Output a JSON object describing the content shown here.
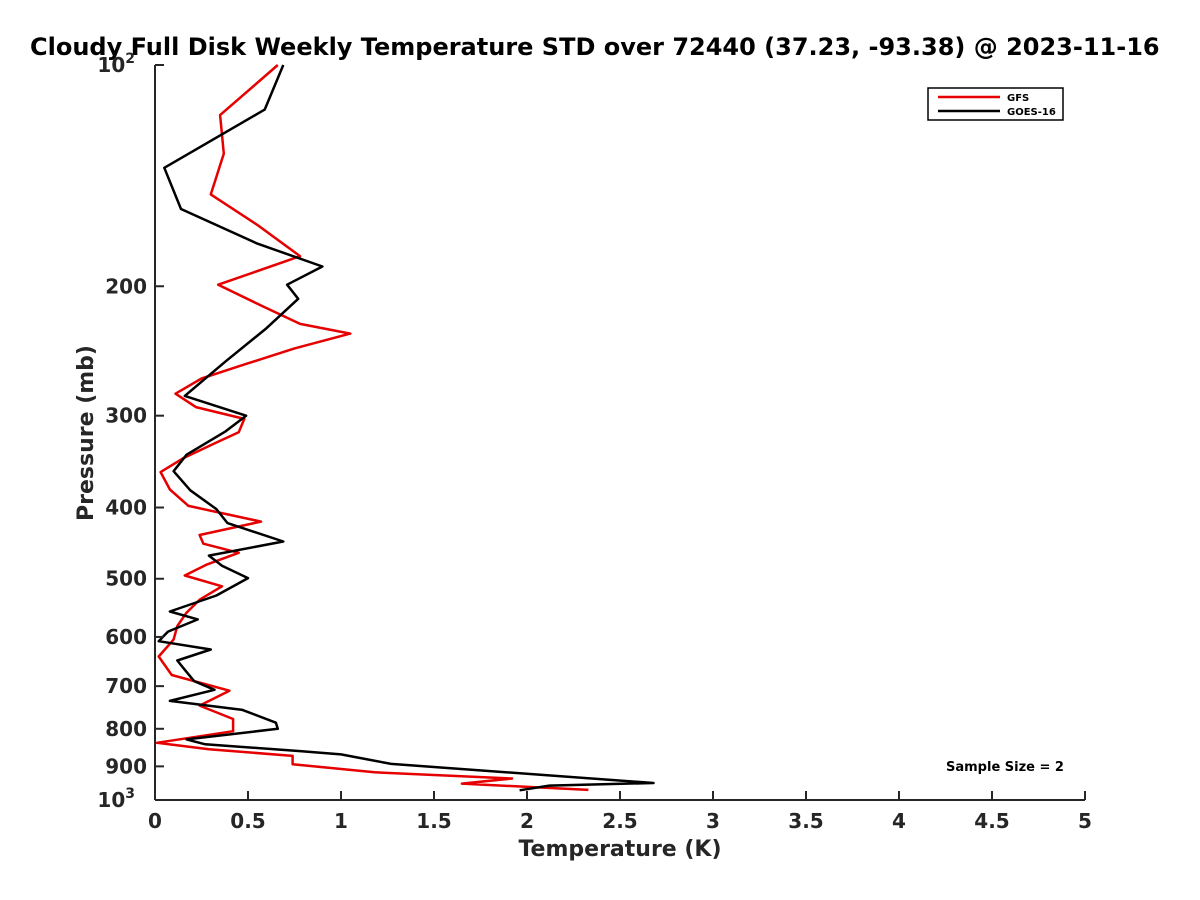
{
  "chart_data": {
    "type": "line",
    "title": "Cloudy Full Disk Weekly Temperature STD over 72440 (37.23, -93.38) @ 2023-11-16",
    "xlabel": "Temperature (K)",
    "ylabel": "Pressure (mb)",
    "xlim": [
      0,
      5
    ],
    "ylim": [
      100,
      1000
    ],
    "yscale": "log",
    "y_reversed": true,
    "x_ticks": [
      {
        "value": 0,
        "label": "0"
      },
      {
        "value": 0.5,
        "label": "0.5"
      },
      {
        "value": 1,
        "label": "1"
      },
      {
        "value": 1.5,
        "label": "1.5"
      },
      {
        "value": 2,
        "label": "2"
      },
      {
        "value": 2.5,
        "label": "2.5"
      },
      {
        "value": 3,
        "label": "3"
      },
      {
        "value": 3.5,
        "label": "3.5"
      },
      {
        "value": 4,
        "label": "4"
      },
      {
        "value": 4.5,
        "label": "4.5"
      },
      {
        "value": 5,
        "label": "5"
      }
    ],
    "y_ticks": [
      {
        "value": 100,
        "label": "10",
        "sup": "2"
      },
      {
        "value": 200,
        "label": "200"
      },
      {
        "value": 300,
        "label": "300"
      },
      {
        "value": 400,
        "label": "400"
      },
      {
        "value": 500,
        "label": "500"
      },
      {
        "value": 600,
        "label": "600"
      },
      {
        "value": 700,
        "label": "700"
      },
      {
        "value": 800,
        "label": "800"
      },
      {
        "value": 900,
        "label": "900"
      },
      {
        "value": 1000,
        "label": "10",
        "sup": "3"
      }
    ],
    "legend": {
      "position": "top-right"
    },
    "annotations": [
      {
        "text": "Sample Size = 2",
        "position": "bottom-right"
      }
    ],
    "grid": false,
    "series": [
      {
        "name": "GFS",
        "color": "#e60000",
        "x": [
          0.66,
          0.35,
          0.37,
          0.3,
          0.55,
          0.78,
          0.34,
          0.58,
          0.78,
          1.05,
          0.75,
          0.45,
          0.25,
          0.11,
          0.22,
          0.48,
          0.45,
          0.31,
          0.15,
          0.03,
          0.08,
          0.18,
          0.57,
          0.24,
          0.26,
          0.45,
          0.28,
          0.16,
          0.36,
          0.24,
          0.17,
          0.12,
          0.1,
          0.02,
          0.09,
          0.4,
          0.24,
          0.42,
          0.42,
          0.01,
          0.29,
          0.74,
          0.74,
          1.18,
          1.92,
          1.65,
          2.33
        ],
        "y": [
          100,
          117,
          132,
          150,
          165,
          182,
          199,
          213,
          225,
          232,
          243,
          257,
          267,
          280,
          292,
          303,
          316,
          328,
          343,
          358,
          378,
          398,
          418,
          436,
          448,
          461,
          478,
          495,
          512,
          534,
          556,
          580,
          605,
          638,
          676,
          710,
          744,
          776,
          806,
          836,
          853,
          871,
          894,
          917,
          935,
          950,
          969
        ]
      },
      {
        "name": "GOES-16",
        "color": "#000000",
        "x": [
          0.69,
          0.59,
          0.05,
          0.14,
          0.55,
          0.9,
          0.71,
          0.77,
          0.6,
          0.38,
          0.16,
          0.49,
          0.38,
          0.17,
          0.1,
          0.19,
          0.33,
          0.39,
          0.69,
          0.29,
          0.36,
          0.5,
          0.33,
          0.08,
          0.23,
          0.07,
          0.02,
          0.3,
          0.12,
          0.16,
          0.21,
          0.32,
          0.08,
          0.47,
          0.65,
          0.66,
          0.17,
          0.27,
          0.78,
          1.0,
          1.27,
          2.68,
          2.12,
          1.96
        ],
        "y": [
          100,
          115,
          138,
          157,
          175,
          188,
          199,
          208,
          228,
          253,
          282,
          300,
          315,
          339,
          357,
          379,
          402,
          420,
          445,
          465,
          480,
          499,
          527,
          554,
          568,
          590,
          608,
          624,
          646,
          665,
          689,
          708,
          733,
          754,
          785,
          800,
          827,
          840,
          858,
          867,
          893,
          948,
          956,
          970
        ]
      }
    ]
  }
}
